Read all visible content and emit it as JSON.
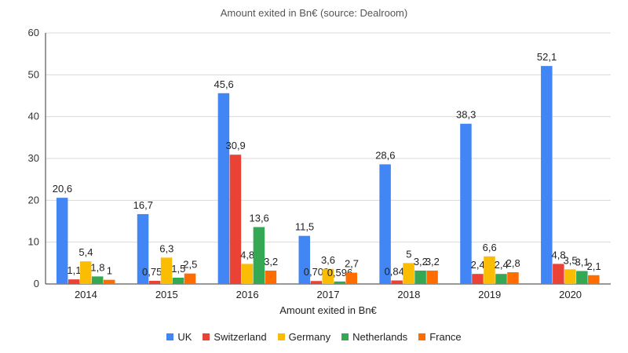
{
  "chart_data": {
    "type": "bar",
    "title": "Amount exited in Bn€ (source: Dealroom)",
    "xlabel": "Amount exited in Bn€",
    "ylabel": "",
    "ylim": [
      0,
      60
    ],
    "yticks": [
      0,
      10,
      20,
      30,
      40,
      50,
      60
    ],
    "grid": true,
    "legend_position": "bottom",
    "categories": [
      "2014",
      "2015",
      "2016",
      "2017",
      "2018",
      "2019",
      "2020"
    ],
    "series": [
      {
        "name": "UK",
        "color": "#4285f4",
        "values": [
          20.6,
          16.7,
          45.6,
          11.5,
          28.6,
          38.3,
          52.1
        ],
        "labels": [
          "20,6",
          "16,7",
          "45,6",
          "11,5",
          "28,6",
          "38,3",
          "52,1"
        ]
      },
      {
        "name": "Switzerland",
        "color": "#ea4335",
        "values": [
          1.1,
          0.753,
          30.9,
          0.709,
          0.841,
          2.4,
          4.8
        ],
        "labels": [
          "1,1",
          "0,753",
          "30,9",
          "0,709",
          "0,841",
          "2,4",
          "4,8"
        ]
      },
      {
        "name": "Germany",
        "color": "#fbbc04",
        "values": [
          5.4,
          6.3,
          4.8,
          3.6,
          5,
          6.6,
          3.5
        ],
        "labels": [
          "5,4",
          "6,3",
          "4,8",
          "3,6",
          "5",
          "6,6",
          "3,5"
        ]
      },
      {
        "name": "Netherlands",
        "color": "#34a853",
        "values": [
          1.8,
          1.5,
          13.6,
          0.596,
          3.2,
          2.4,
          3.1
        ],
        "labels": [
          "1,8",
          "1,5",
          "13,6",
          "0,596",
          "3,2",
          "2,4",
          "3,1"
        ]
      },
      {
        "name": "France",
        "color": "#ff6d01",
        "values": [
          1,
          2.5,
          3.2,
          2.7,
          3.2,
          2.8,
          2.1
        ],
        "labels": [
          "1",
          "2,5",
          "3,2",
          "2,7",
          "3,2",
          "2,8",
          "2,1"
        ]
      }
    ]
  }
}
